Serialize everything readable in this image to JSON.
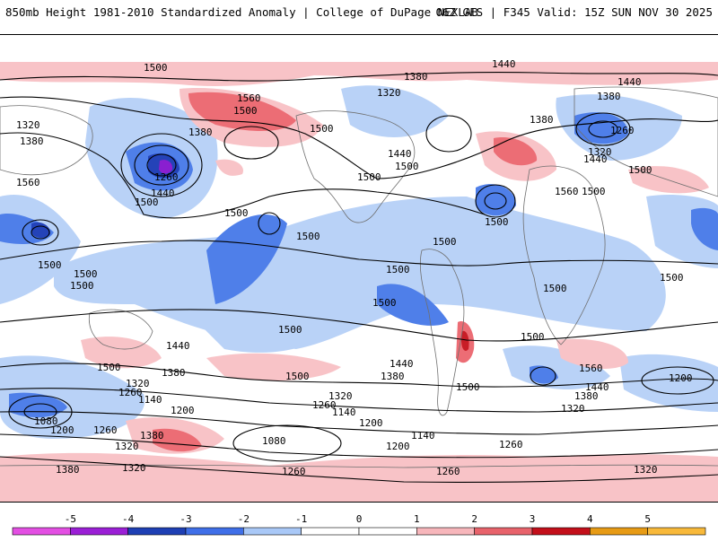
{
  "header": {
    "title_left": "850mb Height 1981-2010 Standardized Anomaly | College of DuPage NEXLAB",
    "title_right": "06Z GFS | F345 Valid: 15Z SUN NOV 30 2025"
  },
  "legend": {
    "ticks": [
      "-5",
      "-4",
      "-3",
      "-2",
      "-1",
      "0",
      "1",
      "2",
      "3",
      "4",
      "5"
    ],
    "colors": [
      "#e34fe3",
      "#9b1fd6",
      "#1e3fb4",
      "#3f6fe8",
      "#a9c8f7",
      "#ffffff",
      "#ffffff",
      "#f7b6bb",
      "#e8636b",
      "#c30f1a",
      "#e79b15",
      "#f8b93a"
    ]
  },
  "contour_labels": [
    "1500",
    "1380",
    "1320",
    "1560",
    "1440",
    "1260",
    "1200",
    "1140",
    "1080"
  ],
  "palette": {
    "neg1": "#b9d2f7",
    "neg2": "#4f7fe9",
    "neg3": "#2443b8",
    "neg4": "#8a1fd0",
    "pos1": "#f8c3c7",
    "pos2": "#ec6d75",
    "pos3": "#c81d27",
    "land": "#7a7a7a"
  }
}
